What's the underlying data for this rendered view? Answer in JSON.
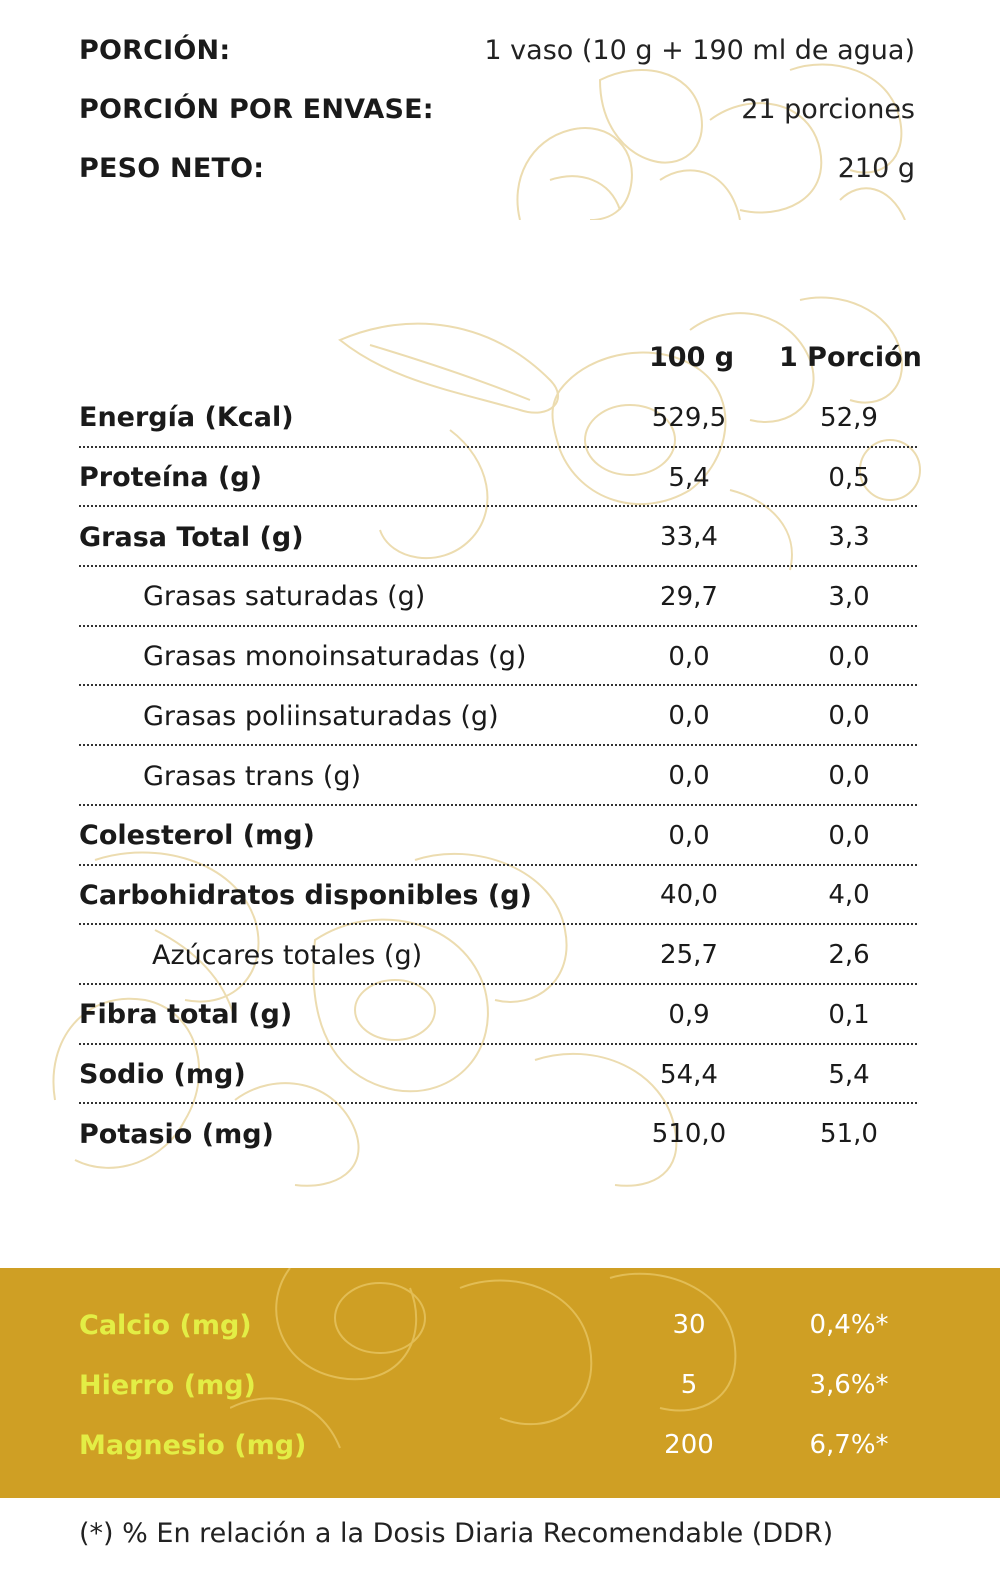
{
  "header": {
    "rows": [
      {
        "label": "PORCIÓN:",
        "value": "1 vaso (10 g + 190 ml de agua)"
      },
      {
        "label": "PORCIÓN POR ENVASE:",
        "value": "21 porciones"
      },
      {
        "label": "PESO NETO:",
        "value": "210 g"
      }
    ]
  },
  "table": {
    "col_100g": "100 g",
    "col_portion": "1 Porción",
    "rows": [
      {
        "label": "Energía (Kcal)",
        "v100": "529,5",
        "vpor": "52,9"
      },
      {
        "label": "Proteína (g)",
        "v100": "5,4",
        "vpor": "0,5"
      },
      {
        "label": "Grasa Total (g)",
        "v100": "33,4",
        "vpor": "3,3"
      },
      {
        "label": "Grasas saturadas (g)",
        "v100": "29,7",
        "vpor": "3,0"
      },
      {
        "label": "Grasas monoinsaturadas (g)",
        "v100": "0,0",
        "vpor": "0,0"
      },
      {
        "label": "Grasas poliinsaturadas (g)",
        "v100": "0,0",
        "vpor": "0,0"
      },
      {
        "label": "Grasas trans (g)",
        "v100": "0,0",
        "vpor": "0,0"
      },
      {
        "label": "Colesterol (mg)",
        "v100": "0,0",
        "vpor": "0,0"
      },
      {
        "label": "Carbohidratos disponibles (g)",
        "v100": "40,0",
        "vpor": "4,0"
      },
      {
        "label": "Azúcares totales (g)",
        "v100": "25,7",
        "vpor": "2,6"
      },
      {
        "label": "Fibra total (g)",
        "v100": "0,9",
        "vpor": "0,1"
      },
      {
        "label": "Sodio (mg)",
        "v100": "54,4",
        "vpor": "5,4"
      },
      {
        "label": "Potasio (mg)",
        "v100": "510,0",
        "vpor": "51,0"
      }
    ]
  },
  "minerals": {
    "rows": [
      {
        "label": "Calcio (mg)",
        "amount": "30",
        "percent": "0,4%*"
      },
      {
        "label": "Hierro (mg)",
        "amount": "5",
        "percent": "3,6%*"
      },
      {
        "label": "Magnesio (mg)",
        "amount": "200",
        "percent": "6,7%*"
      }
    ]
  },
  "footnote": "(*) % En relación a la Dosis Diaria Recomendable (DDR)",
  "colors": {
    "band_background": "#cf9f24",
    "mineral_label": "#e3ee45",
    "mineral_value": "#ffffff",
    "decoration": "#ecdcb0"
  }
}
